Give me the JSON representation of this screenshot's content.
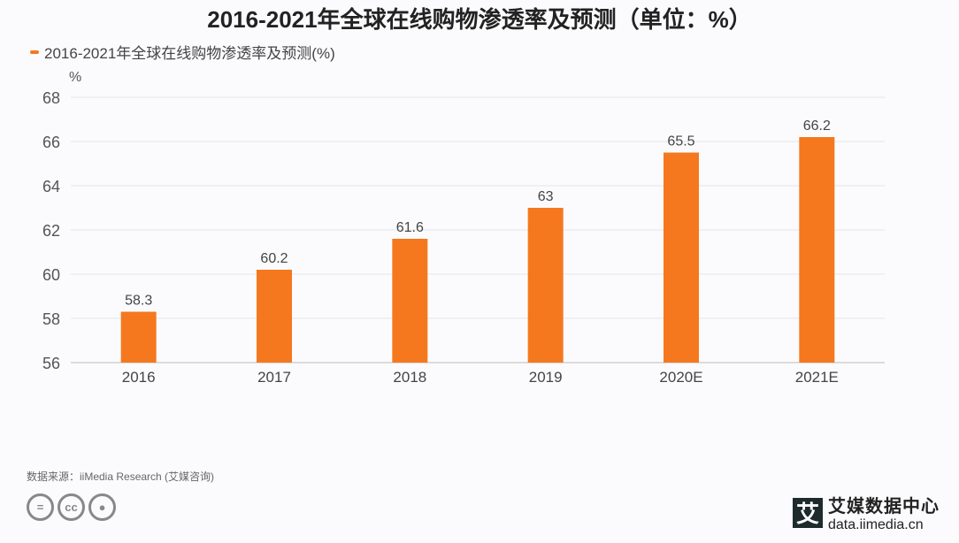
{
  "chart_data": {
    "type": "bar",
    "title": "2016-2021年全球在线购物渗透率及预测（单位：%）",
    "legend": [
      "2016-2021年全球在线购物渗透率及预测(%)"
    ],
    "legend_position": "top-left",
    "ylabel": "%",
    "xlabel": "",
    "categories": [
      "2016",
      "2017",
      "2018",
      "2019",
      "2020E",
      "2021E"
    ],
    "values": [
      58.3,
      60.2,
      61.6,
      63,
      65.5,
      66.2
    ],
    "data_labels": [
      "58.3",
      "60.2",
      "61.6",
      "63",
      "65.5",
      "66.2"
    ],
    "ylim": [
      56,
      68
    ],
    "yticks": [
      "56",
      "58",
      "60",
      "62",
      "64",
      "66",
      "68"
    ],
    "grid": true,
    "color": "#f5781e"
  },
  "footer": {
    "source": "数据来源：iiMedia Research (艾媒咨询)",
    "logo_mark": "艾",
    "logo_name": "艾媒数据中心",
    "logo_url": "data.iimedia.cn",
    "cc_icons": [
      "=",
      "cc",
      "person"
    ]
  }
}
